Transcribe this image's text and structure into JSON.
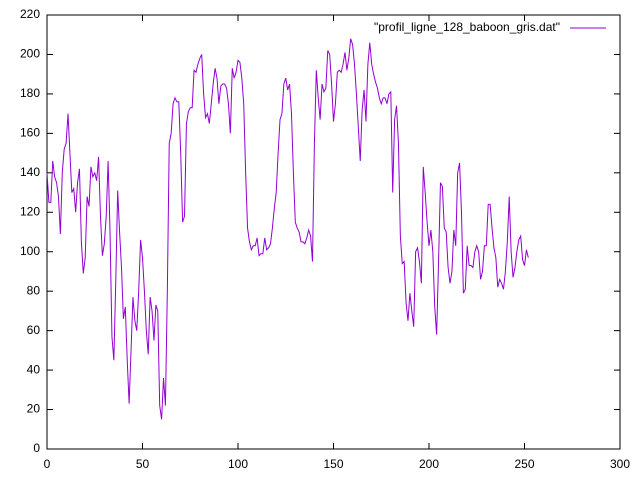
{
  "chart_data": {
    "type": "line",
    "x": [
      0,
      1,
      2,
      3,
      4,
      5,
      6,
      7,
      8,
      9,
      10,
      11,
      12,
      13,
      14,
      15,
      16,
      17,
      18,
      19,
      20,
      21,
      22,
      23,
      24,
      25,
      26,
      27,
      28,
      29,
      30,
      31,
      32,
      33,
      34,
      35,
      36,
      37,
      38,
      39,
      40,
      41,
      42,
      43,
      44,
      45,
      46,
      47,
      48,
      49,
      50,
      51,
      52,
      53,
      54,
      55,
      56,
      57,
      58,
      59,
      60,
      61,
      62,
      63,
      64,
      65,
      66,
      67,
      68,
      69,
      70,
      71,
      72,
      73,
      74,
      75,
      76,
      77,
      78,
      79,
      80,
      81,
      82,
      83,
      84,
      85,
      86,
      87,
      88,
      89,
      90,
      91,
      92,
      93,
      94,
      95,
      96,
      97,
      98,
      99,
      100,
      101,
      102,
      103,
      104,
      105,
      106,
      107,
      108,
      109,
      110,
      111,
      112,
      113,
      114,
      115,
      116,
      117,
      118,
      119,
      120,
      121,
      122,
      123,
      124,
      125,
      126,
      127,
      128,
      129,
      130,
      131,
      132,
      133,
      134,
      135,
      136,
      137,
      138,
      139,
      140,
      141,
      142,
      143,
      144,
      145,
      146,
      147,
      148,
      149,
      150,
      151,
      152,
      153,
      154,
      155,
      156,
      157,
      158,
      159,
      160,
      161,
      162,
      163,
      164,
      165,
      166,
      167,
      168,
      169,
      170,
      171,
      172,
      173,
      174,
      175,
      176,
      177,
      178,
      179,
      180,
      181,
      182,
      183,
      184,
      185,
      186,
      187,
      188,
      189,
      190,
      191,
      192,
      193,
      194,
      195,
      196,
      197,
      198,
      199,
      200,
      201,
      202,
      203,
      204,
      205,
      206,
      207,
      208,
      209,
      210,
      211,
      212,
      213,
      214,
      215,
      216,
      217,
      218,
      219,
      220,
      221,
      222,
      223,
      224,
      225,
      226,
      227,
      228,
      229,
      230,
      231,
      232,
      233,
      234,
      235,
      236,
      237,
      238,
      239,
      240,
      241,
      242,
      243,
      244,
      245,
      246,
      247,
      248,
      249,
      250,
      251,
      252
    ],
    "series": [
      {
        "name": "\"profil_ligne_128_baboon_gris.dat\"",
        "color": "#9400d3",
        "values": [
          140,
          125,
          125,
          146,
          138,
          135,
          128,
          109,
          140,
          152,
          155,
          170,
          150,
          130,
          132,
          120,
          135,
          142,
          105,
          89,
          97,
          128,
          123,
          143,
          138,
          140,
          136,
          148,
          118,
          98,
          104,
          118,
          146,
          110,
          57,
          45,
          85,
          131,
          110,
          92,
          66,
          72,
          45,
          23,
          50,
          77,
          65,
          60,
          80,
          106,
          97,
          80,
          60,
          48,
          77,
          70,
          55,
          73,
          70,
          22,
          15,
          36,
          22,
          80,
          155,
          160,
          175,
          178,
          176,
          176,
          150,
          115,
          118,
          165,
          171,
          173,
          173,
          192,
          191,
          195,
          198,
          200,
          180,
          168,
          170,
          165,
          175,
          185,
          193,
          188,
          175,
          184,
          185,
          185,
          183,
          175,
          160,
          193,
          188,
          191,
          197,
          196,
          188,
          175,
          140,
          112,
          105,
          101,
          103,
          103,
          107,
          98,
          99,
          99,
          107,
          101,
          102,
          104,
          112,
          122,
          130,
          150,
          167,
          170,
          185,
          188,
          182,
          185,
          170,
          140,
          115,
          112,
          110,
          105,
          105,
          104,
          107,
          111,
          108,
          95,
          155,
          192,
          178,
          167,
          185,
          181,
          183,
          202,
          200,
          185,
          166,
          175,
          191,
          192,
          191,
          195,
          201,
          192,
          198,
          208,
          205,
          195,
          180,
          163,
          146,
          172,
          182,
          166,
          195,
          206,
          195,
          190,
          186,
          183,
          178,
          175,
          178,
          178,
          175,
          180,
          181,
          130,
          167,
          174,
          155,
          108,
          94,
          95,
          74,
          65,
          79,
          70,
          62,
          100,
          102,
          95,
          84,
          143,
          130,
          115,
          103,
          111,
          100,
          72,
          58,
          95,
          135,
          133,
          112,
          110,
          92,
          84,
          90,
          111,
          103,
          140,
          145,
          120,
          79,
          81,
          103,
          93,
          93,
          92,
          100,
          103,
          100,
          86,
          90,
          103,
          103,
          124,
          124,
          112,
          102,
          97,
          82,
          86,
          84,
          81,
          90,
          105,
          128,
          100,
          87,
          92,
          100,
          106,
          108,
          96,
          93,
          101,
          97
        ]
      }
    ],
    "xlim": [
      0,
      300
    ],
    "xticks": [
      0,
      50,
      100,
      150,
      200,
      250,
      300
    ],
    "ylim": [
      0,
      220
    ],
    "yticks": [
      0,
      20,
      40,
      60,
      80,
      100,
      120,
      140,
      160,
      180,
      200,
      220
    ],
    "legend": "top-right"
  }
}
